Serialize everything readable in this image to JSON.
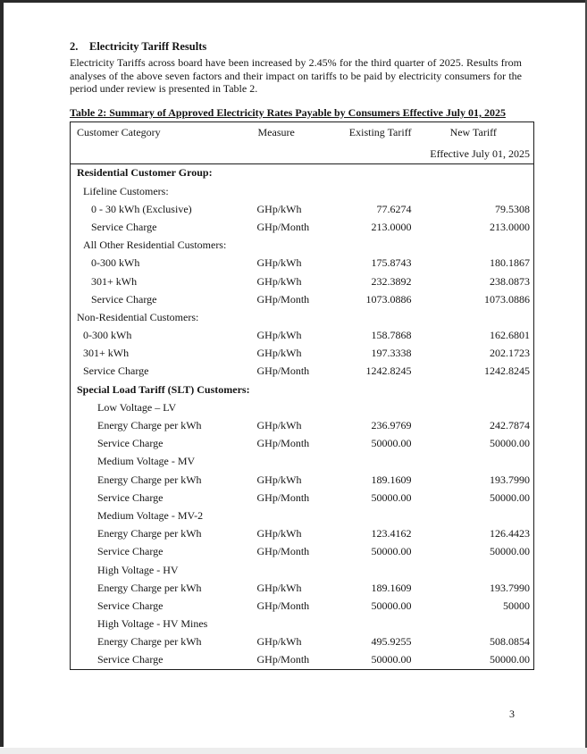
{
  "page": {
    "section_number": "2.",
    "section_title": "Electricity Tariff Results",
    "paragraph": "Electricity Tariffs across board have been increased by 2.45% for the third quarter of 2025. Results from analyses of the above seven factors and their impact on tariffs to be paid by electricity consumers for the period under review is presented in Table 2.",
    "page_number": "3"
  },
  "table": {
    "title": "Table 2: Summary of Approved Electricity Rates Payable by Consumers Effective July 01, 2025",
    "columns": {
      "category": "Customer Category",
      "measure": "Measure",
      "existing": "Existing Tariff",
      "new": "New Tariff",
      "new_subheader": "Effective July 01, 2025"
    },
    "rows": [
      {
        "label": "Residential Customer Group:",
        "indent": 0,
        "bold": true,
        "measure": "",
        "existing": "",
        "new": ""
      },
      {
        "label": "Lifeline Customers:",
        "indent": 1,
        "bold": false,
        "measure": "",
        "existing": "",
        "new": ""
      },
      {
        "label": "0 - 30 kWh (Exclusive)",
        "indent": 2,
        "bold": false,
        "measure": "GHp/kWh",
        "existing": "77.6274",
        "new": "79.5308"
      },
      {
        "label": "Service Charge",
        "indent": 2,
        "bold": false,
        "measure": "GHp/Month",
        "existing": "213.0000",
        "new": "213.0000"
      },
      {
        "label": "All Other Residential Customers:",
        "indent": 1,
        "bold": false,
        "measure": "",
        "existing": "",
        "new": ""
      },
      {
        "label": "0-300 kWh",
        "indent": 2,
        "bold": false,
        "measure": "GHp/kWh",
        "existing": "175.8743",
        "new": "180.1867"
      },
      {
        "label": "301+ kWh",
        "indent": 2,
        "bold": false,
        "measure": "GHp/kWh",
        "existing": "232.3892",
        "new": "238.0873"
      },
      {
        "label": "Service Charge",
        "indent": 2,
        "bold": false,
        "measure": "GHp/Month",
        "existing": "1073.0886",
        "new": "1073.0886"
      },
      {
        "label": "Non-Residential Customers:",
        "indent": 0,
        "bold": false,
        "measure": "",
        "existing": "",
        "new": ""
      },
      {
        "label": "0-300 kWh",
        "indent": 1,
        "bold": false,
        "measure": "GHp/kWh",
        "existing": "158.7868",
        "new": "162.6801"
      },
      {
        "label": "301+ kWh",
        "indent": 1,
        "bold": false,
        "measure": "GHp/kWh",
        "existing": "197.3338",
        "new": "202.1723"
      },
      {
        "label": "Service Charge",
        "indent": 1,
        "bold": false,
        "measure": "GHp/Month",
        "existing": "1242.8245",
        "new": "1242.8245"
      },
      {
        "label": "Special Load Tariff (SLT) Customers:",
        "indent": 0,
        "bold": true,
        "measure": "",
        "existing": "",
        "new": ""
      },
      {
        "label": "Low Voltage – LV",
        "indent": 3,
        "bold": false,
        "measure": "",
        "existing": "",
        "new": ""
      },
      {
        "label": "Energy Charge per kWh",
        "indent": 3,
        "bold": false,
        "measure": "GHp/kWh",
        "existing": "236.9769",
        "new": "242.7874"
      },
      {
        "label": "Service Charge",
        "indent": 3,
        "bold": false,
        "measure": "GHp/Month",
        "existing": "50000.00",
        "new": "50000.00"
      },
      {
        "label": "Medium Voltage - MV",
        "indent": 3,
        "bold": false,
        "measure": "",
        "existing": "",
        "new": ""
      },
      {
        "label": "Energy Charge per kWh",
        "indent": 3,
        "bold": false,
        "measure": "GHp/kWh",
        "existing": "189.1609",
        "new": "193.7990"
      },
      {
        "label": "Service Charge",
        "indent": 3,
        "bold": false,
        "measure": "GHp/Month",
        "existing": "50000.00",
        "new": "50000.00"
      },
      {
        "label": "Medium Voltage - MV-2",
        "indent": 3,
        "bold": false,
        "measure": "",
        "existing": "",
        "new": ""
      },
      {
        "label": "Energy Charge per kWh",
        "indent": 3,
        "bold": false,
        "measure": "GHp/kWh",
        "existing": "123.4162",
        "new": "126.4423"
      },
      {
        "label": "Service Charge",
        "indent": 3,
        "bold": false,
        "measure": "GHp/Month",
        "existing": "50000.00",
        "new": "50000.00"
      },
      {
        "label": "High Voltage - HV",
        "indent": 3,
        "bold": false,
        "measure": "",
        "existing": "",
        "new": ""
      },
      {
        "label": "Energy Charge per kWh",
        "indent": 3,
        "bold": false,
        "measure": "GHp/kWh",
        "existing": "189.1609",
        "new": "193.7990"
      },
      {
        "label": "Service Charge",
        "indent": 3,
        "bold": false,
        "measure": "GHp/Month",
        "existing": "50000.00",
        "new": "50000"
      },
      {
        "label": "High Voltage - HV Mines",
        "indent": 3,
        "bold": false,
        "measure": "",
        "existing": "",
        "new": ""
      },
      {
        "label": "Energy Charge per kWh",
        "indent": 3,
        "bold": false,
        "measure": "GHp/kWh",
        "existing": "495.9255",
        "new": "508.0854"
      },
      {
        "label": "Service Charge",
        "indent": 3,
        "bold": false,
        "measure": "GHp/Month",
        "existing": "50000.00",
        "new": "50000.00"
      }
    ]
  }
}
